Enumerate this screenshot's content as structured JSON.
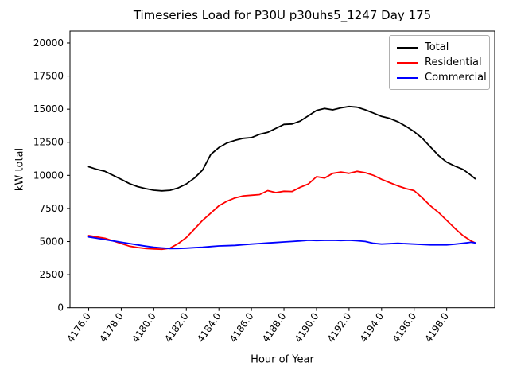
{
  "chart_data": {
    "type": "line",
    "title": "Timeseries Load for P30U p30uhs5_1247  Day 175",
    "xlabel": "Hour of Year",
    "ylabel": "kW total",
    "xlim": [
      4174.85,
      4200.95
    ],
    "ylim": [
      0,
      20900
    ],
    "grid": false,
    "legend_position": "upper right",
    "xticks": [
      4176,
      4178,
      4180,
      4182,
      4184,
      4186,
      4188,
      4190,
      4192,
      4194,
      4196,
      4198
    ],
    "xticklabels": [
      "4176.0",
      "4178.0",
      "4180.0",
      "4182.0",
      "4184.0",
      "4186.0",
      "4188.0",
      "4190.0",
      "4192.0",
      "4194.0",
      "4196.0",
      "4198.0"
    ],
    "yticks": [
      0,
      2500,
      5000,
      7500,
      10000,
      12500,
      15000,
      17500,
      20000
    ],
    "yticklabels": [
      "0",
      "2500",
      "5000",
      "7500",
      "10000",
      "12500",
      "15000",
      "17500",
      "20000"
    ],
    "x": [
      4176.0,
      4176.5,
      4177.0,
      4177.5,
      4178.0,
      4178.5,
      4179.0,
      4179.5,
      4180.0,
      4180.5,
      4181.0,
      4181.5,
      4182.0,
      4182.5,
      4183.0,
      4183.5,
      4184.0,
      4184.5,
      4185.0,
      4185.5,
      4186.0,
      4186.5,
      4187.0,
      4187.5,
      4188.0,
      4188.5,
      4189.0,
      4189.5,
      4190.0,
      4190.5,
      4191.0,
      4191.5,
      4192.0,
      4192.5,
      4193.0,
      4193.5,
      4194.0,
      4194.5,
      4195.0,
      4195.5,
      4196.0,
      4196.5,
      4197.0,
      4197.5,
      4198.0,
      4198.5,
      4199.0,
      4199.5,
      4199.75
    ],
    "series": [
      {
        "name": "Total",
        "color": "#000000",
        "values": [
          10650,
          10450,
          10300,
          10000,
          9700,
          9380,
          9150,
          9000,
          8880,
          8830,
          8870,
          9050,
          9350,
          9800,
          10400,
          11580,
          12100,
          12450,
          12650,
          12800,
          12850,
          13100,
          13250,
          13550,
          13850,
          13880,
          14100,
          14500,
          14900,
          15050,
          14950,
          15100,
          15200,
          15150,
          14950,
          14700,
          14450,
          14300,
          14050,
          13700,
          13300,
          12800,
          12150,
          11500,
          11000,
          10700,
          10450,
          10000,
          9750
        ]
      },
      {
        "name": "Residential",
        "color": "#ff0000",
        "values": [
          5450,
          5350,
          5250,
          5050,
          4850,
          4650,
          4550,
          4480,
          4440,
          4420,
          4500,
          4850,
          5300,
          5950,
          6600,
          7150,
          7700,
          8050,
          8300,
          8450,
          8500,
          8550,
          8850,
          8700,
          8800,
          8780,
          9100,
          9350,
          9900,
          9800,
          10150,
          10250,
          10150,
          10300,
          10200,
          10000,
          9700,
          9450,
          9200,
          9000,
          8850,
          8300,
          7700,
          7200,
          6600,
          6000,
          5450,
          5050,
          4900
        ]
      },
      {
        "name": "Commercial",
        "color": "#0000ff",
        "values": [
          5350,
          5250,
          5150,
          5050,
          4950,
          4850,
          4750,
          4650,
          4570,
          4520,
          4470,
          4480,
          4500,
          4540,
          4570,
          4620,
          4670,
          4690,
          4710,
          4760,
          4810,
          4850,
          4890,
          4930,
          4970,
          5010,
          5050,
          5100,
          5080,
          5090,
          5100,
          5080,
          5100,
          5060,
          5010,
          4870,
          4810,
          4840,
          4870,
          4840,
          4810,
          4780,
          4750,
          4750,
          4750,
          4800,
          4870,
          4950,
          4900
        ]
      }
    ]
  }
}
